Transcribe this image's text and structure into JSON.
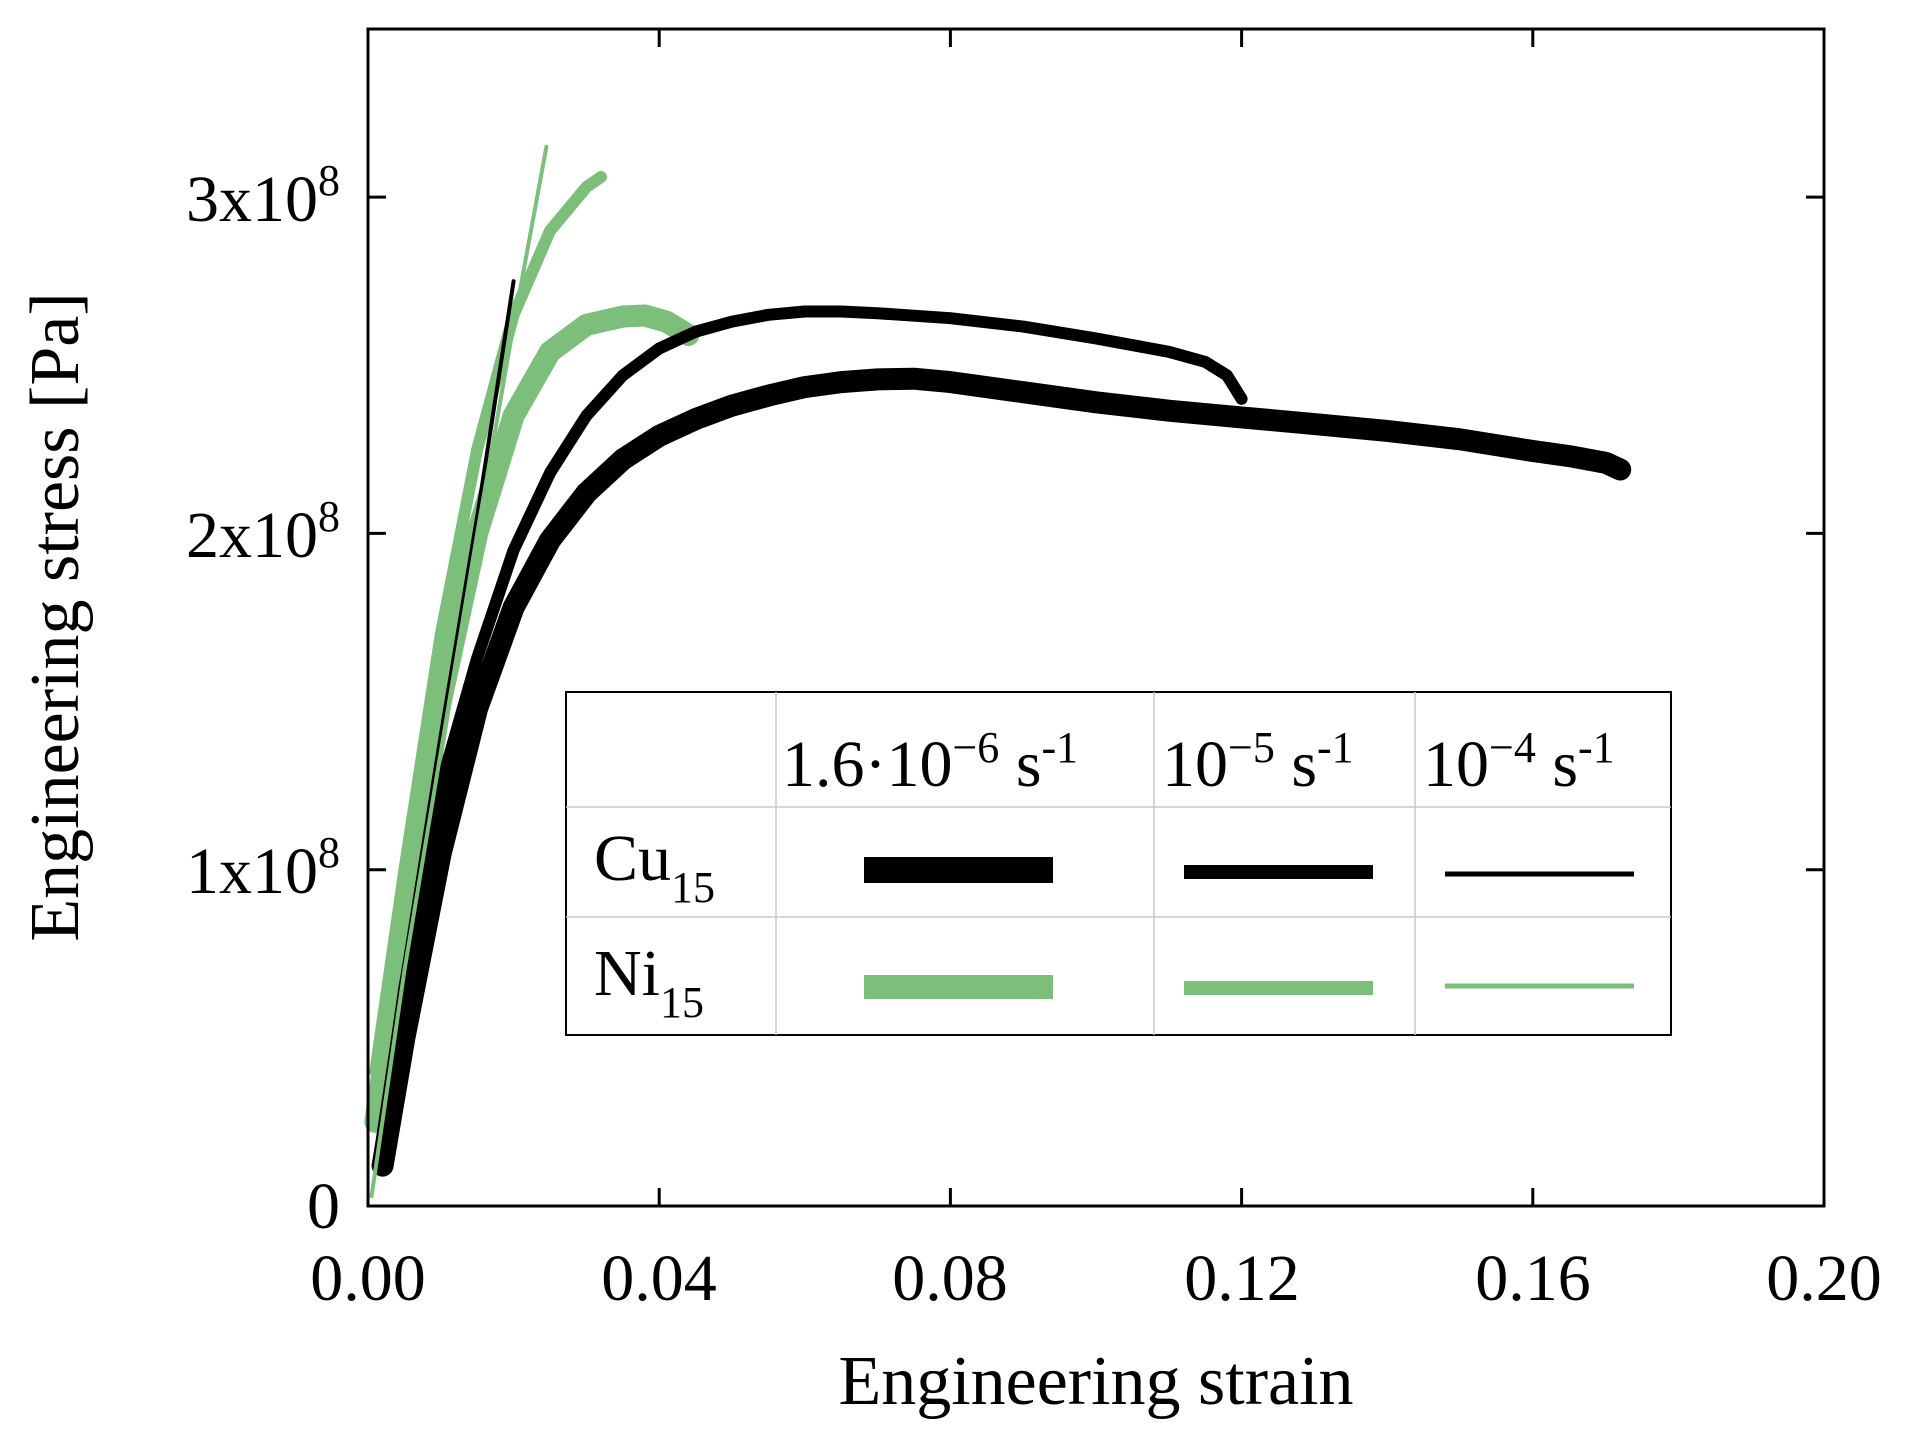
{
  "chart_data": {
    "type": "line",
    "title": "",
    "xlabel": "Engineering strain",
    "ylabel": "Engineering stress [Pa]",
    "xlim": [
      0,
      0.2
    ],
    "ylim": [
      0,
      350000000
    ],
    "grid": false,
    "x_ticks": [
      0,
      0.04,
      0.08,
      0.12,
      0.16,
      0.2
    ],
    "x_tick_labels": [
      "0.00",
      "0.04",
      "0.08",
      "0.12",
      "0.16",
      "0.20"
    ],
    "y_ticks": [
      0,
      100000000,
      200000000,
      300000000
    ],
    "y_tick_labels": [
      {
        "mantissa": "0",
        "exponent": ""
      },
      {
        "mantissa": "1x10",
        "exponent": "8"
      },
      {
        "mantissa": "2x10",
        "exponent": "8"
      },
      {
        "mantissa": "3x10",
        "exponent": "8"
      }
    ],
    "legend": {
      "placement": "center-right",
      "column_headers": [
        {
          "base": "1.6·10",
          "exponent": "−6",
          "unit": " s",
          "unit_exponent": "-1"
        },
        {
          "base": "10",
          "exponent": "−5",
          "unit": " s",
          "unit_exponent": "-1"
        },
        {
          "base": "10",
          "exponent": "−4",
          "unit": " s",
          "unit_exponent": "-1"
        }
      ],
      "row_headers": [
        {
          "base": "Cu",
          "subscript": "15"
        },
        {
          "base": "Ni",
          "subscript": "15"
        }
      ]
    },
    "colors": {
      "cu": "#000000",
      "ni": "#7bbf7b"
    },
    "series": [
      {
        "name": "Cu15 1.6·10−6 s-1",
        "material": "Cu15",
        "rate": "1.6·10−6 s-1",
        "color": "#000000",
        "width_class": "thick",
        "x": [
          0.002,
          0.005,
          0.01,
          0.015,
          0.02,
          0.025,
          0.03,
          0.035,
          0.04,
          0.045,
          0.05,
          0.055,
          0.06,
          0.065,
          0.07,
          0.075,
          0.08,
          0.09,
          0.1,
          0.11,
          0.12,
          0.13,
          0.14,
          0.15,
          0.16,
          0.165,
          0.17,
          0.172
        ],
        "y": [
          12000000,
          50000000,
          105000000,
          148000000,
          178000000,
          198000000,
          212000000,
          222000000,
          229000000,
          234000000,
          238000000,
          241000000,
          243500000,
          245000000,
          245800000,
          246000000,
          245000000,
          242000000,
          239000000,
          236500000,
          234500000,
          232500000,
          230500000,
          228000000,
          224500000,
          223000000,
          221000000,
          219000000
        ]
      },
      {
        "name": "Cu15 10−5 s-1",
        "material": "Cu15",
        "rate": "10−5 s-1",
        "color": "#000000",
        "width_class": "medium",
        "x": [
          0.002,
          0.005,
          0.01,
          0.015,
          0.02,
          0.025,
          0.03,
          0.035,
          0.04,
          0.045,
          0.05,
          0.055,
          0.06,
          0.065,
          0.07,
          0.08,
          0.09,
          0.1,
          0.11,
          0.115,
          0.118,
          0.12
        ],
        "y": [
          20000000,
          65000000,
          125000000,
          163000000,
          195000000,
          218000000,
          235000000,
          247000000,
          255000000,
          260000000,
          263000000,
          265000000,
          266000000,
          266000000,
          265500000,
          264000000,
          261500000,
          258000000,
          254000000,
          251000000,
          247000000,
          240000000
        ]
      },
      {
        "name": "Cu15 10−4 s-1",
        "material": "Cu15",
        "rate": "10−4 s-1",
        "color": "#000000",
        "width_class": "thin",
        "x": [
          0.001,
          0.005,
          0.01,
          0.015,
          0.02
        ],
        "y": [
          15000000,
          72000000,
          140000000,
          205000000,
          275000000
        ]
      },
      {
        "name": "Ni15 1.6·10−6 s-1",
        "material": "Ni15",
        "rate": "1.6·10−6 s-1",
        "color": "#7bbf7b",
        "width_class": "thick",
        "x": [
          0.001,
          0.005,
          0.01,
          0.015,
          0.02,
          0.025,
          0.03,
          0.035,
          0.038,
          0.041,
          0.044
        ],
        "y": [
          25000000,
          85000000,
          150000000,
          200000000,
          235000000,
          254000000,
          262000000,
          264500000,
          264800000,
          263000000,
          259000000
        ]
      },
      {
        "name": "Ni15 10−5 s-1",
        "material": "Ni15",
        "rate": "10−5 s-1",
        "color": "#7bbf7b",
        "width_class": "medium",
        "x": [
          0.001,
          0.005,
          0.01,
          0.015,
          0.02,
          0.025,
          0.03,
          0.032
        ],
        "y": [
          40000000,
          100000000,
          170000000,
          225000000,
          265000000,
          290000000,
          303000000,
          306000000
        ]
      },
      {
        "name": "Ni15 10−4 s-1",
        "material": "Ni15",
        "rate": "10−4 s-1",
        "color": "#7bbf7b",
        "width_class": "thin",
        "x": [
          0.0005,
          0.005,
          0.01,
          0.015,
          0.02,
          0.0245
        ],
        "y": [
          3000000,
          70000000,
          135000000,
          200000000,
          262000000,
          315000000
        ]
      }
    ]
  }
}
